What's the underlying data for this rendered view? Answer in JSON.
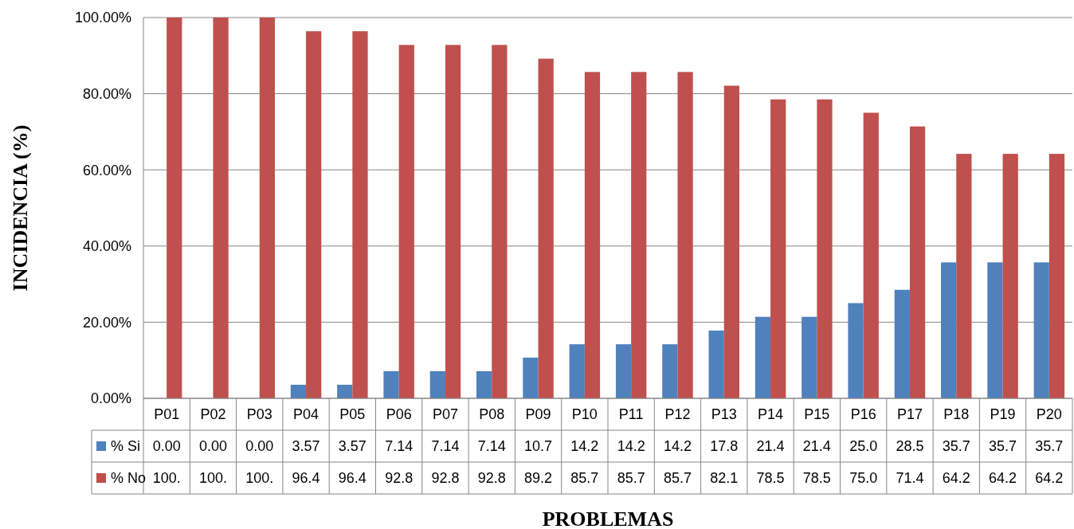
{
  "chart_data": {
    "type": "bar",
    "xlabel": "PROBLEMAS",
    "ylabel": "INCIDENCIA (%)",
    "categories": [
      "P01",
      "P02",
      "P03",
      "P04",
      "P05",
      "P06",
      "P07",
      "P08",
      "P09",
      "P10",
      "P11",
      "P12",
      "P13",
      "P14",
      "P15",
      "P16",
      "P17",
      "P18",
      "P19",
      "P20"
    ],
    "series": [
      {
        "name": "% Si",
        "color": "#4f81bd",
        "values": [
          0,
          0,
          0,
          3.57,
          3.57,
          7.14,
          7.14,
          7.14,
          10.7,
          14.2,
          14.2,
          14.2,
          17.8,
          21.4,
          21.4,
          25.0,
          28.5,
          35.7,
          35.7,
          35.7
        ],
        "value_labels": [
          "0.00",
          "0.00",
          "0.00",
          "3.57",
          "3.57",
          "7.14",
          "7.14",
          "7.14",
          "10.7",
          "14.2",
          "14.2",
          "14.2",
          "17.8",
          "21.4",
          "21.4",
          "25.0",
          "28.5",
          "35.7",
          "35.7",
          "35.7"
        ]
      },
      {
        "name": "% No",
        "color": "#c0504d",
        "values": [
          100,
          100,
          100,
          96.4,
          96.4,
          92.8,
          92.8,
          92.8,
          89.2,
          85.7,
          85.7,
          85.7,
          82.1,
          78.5,
          78.5,
          75.0,
          71.4,
          64.2,
          64.2,
          64.2
        ],
        "value_labels": [
          "100.",
          "100.",
          "100.",
          "96.4",
          "96.4",
          "92.8",
          "92.8",
          "92.8",
          "89.2",
          "85.7",
          "85.7",
          "85.7",
          "82.1",
          "78.5",
          "78.5",
          "75.0",
          "71.4",
          "64.2",
          "64.2",
          "64.2"
        ]
      }
    ],
    "ylim": [
      0,
      100
    ],
    "yticks": [
      {
        "value": 0,
        "label": "0.00%"
      },
      {
        "value": 20,
        "label": "20.00%"
      },
      {
        "value": 40,
        "label": "40.00%"
      },
      {
        "value": 60,
        "label": "60.00%"
      },
      {
        "value": 80,
        "label": "80.00%"
      },
      {
        "value": 100,
        "label": "100.00%"
      }
    ],
    "grid": "y",
    "legend": "bottom"
  }
}
